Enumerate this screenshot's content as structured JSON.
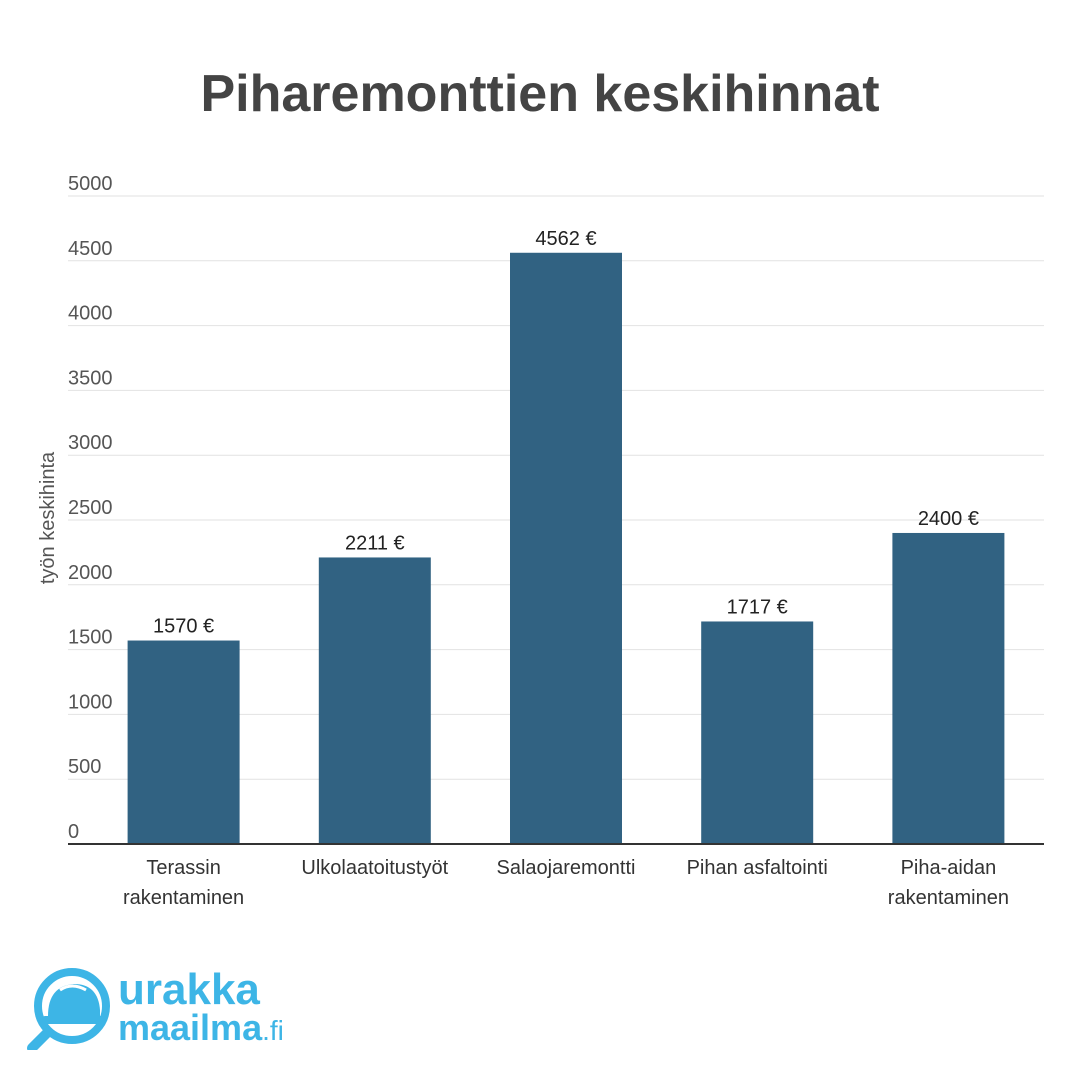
{
  "chart_data": {
    "type": "bar",
    "title": "Piharemonttien keskihinnat",
    "xlabel": "",
    "ylabel": "työn keskihinta",
    "ylim": [
      0,
      5000
    ],
    "yticks": [
      0,
      500,
      1000,
      1500,
      2000,
      2500,
      3000,
      3500,
      4000,
      4500,
      5000
    ],
    "grid": true,
    "legend": "none",
    "categories": [
      [
        "Terassin",
        "rakentaminen"
      ],
      [
        "Ulkolaatoitustyöt"
      ],
      [
        "Salaojaremontti"
      ],
      [
        "Pihan asfaltointi"
      ],
      [
        "Piha-aidan",
        "rakentaminen"
      ]
    ],
    "values": [
      1570,
      2211,
      4562,
      1717,
      2400
    ],
    "data_labels": [
      "1570 €",
      "2211 €",
      "4562 €",
      "1717 €",
      "2400 €"
    ],
    "bar_color": "#316282"
  },
  "logo": {
    "line1": "urakka",
    "line2": "maailma",
    "suffix": ".fi",
    "color": "#3db5e6",
    "icon": "helmet-magnifier-icon"
  }
}
